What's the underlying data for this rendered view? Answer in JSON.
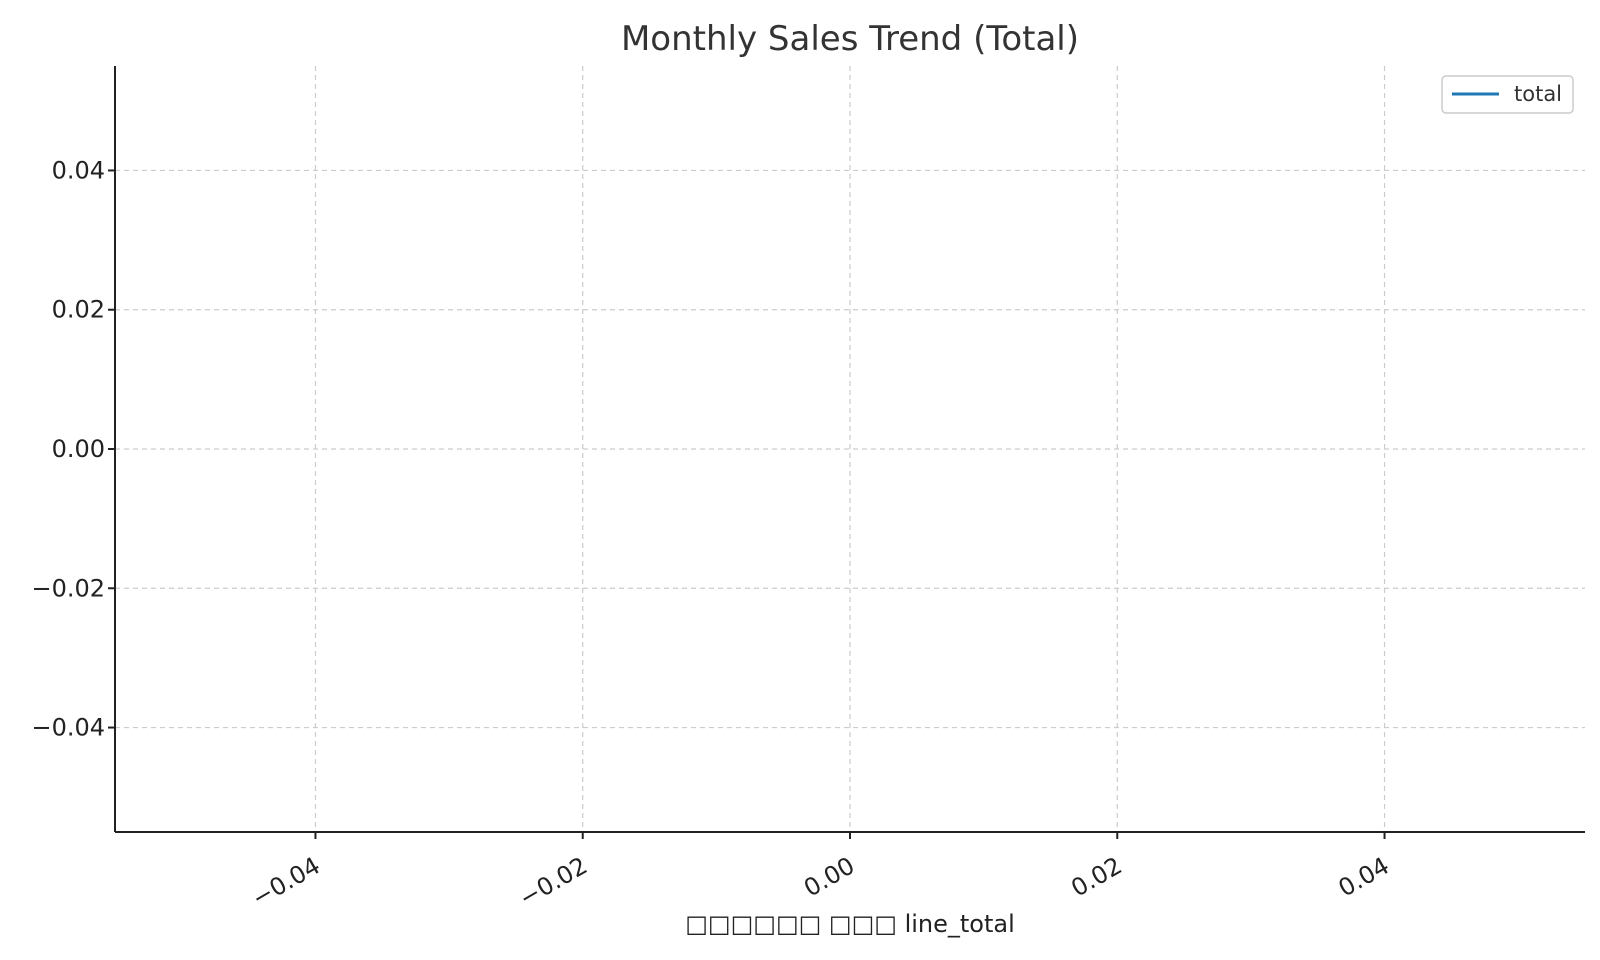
{
  "chart_data": {
    "type": "line",
    "title": "Monthly Sales Trend (Total)",
    "xlabel": "□□□□□□ □□□ line_total",
    "ylabel": "",
    "x": [],
    "series": [
      {
        "name": "total",
        "values": [],
        "color": "#1f77b4"
      }
    ],
    "xlim": [
      -0.055,
      0.055
    ],
    "ylim": [
      -0.055,
      0.055
    ],
    "xticks": [
      -0.04,
      -0.02,
      0.0,
      0.02,
      0.04
    ],
    "xtick_labels": [
      "−0.04",
      "−0.02",
      "0.00",
      "0.02",
      "0.04"
    ],
    "yticks": [
      0.04,
      0.02,
      0.0,
      -0.02,
      -0.04
    ],
    "ytick_labels": [
      "0.04",
      "0.02",
      "0.00",
      "−0.02",
      "−0.04"
    ],
    "grid": true,
    "legend_position": "top-right"
  }
}
